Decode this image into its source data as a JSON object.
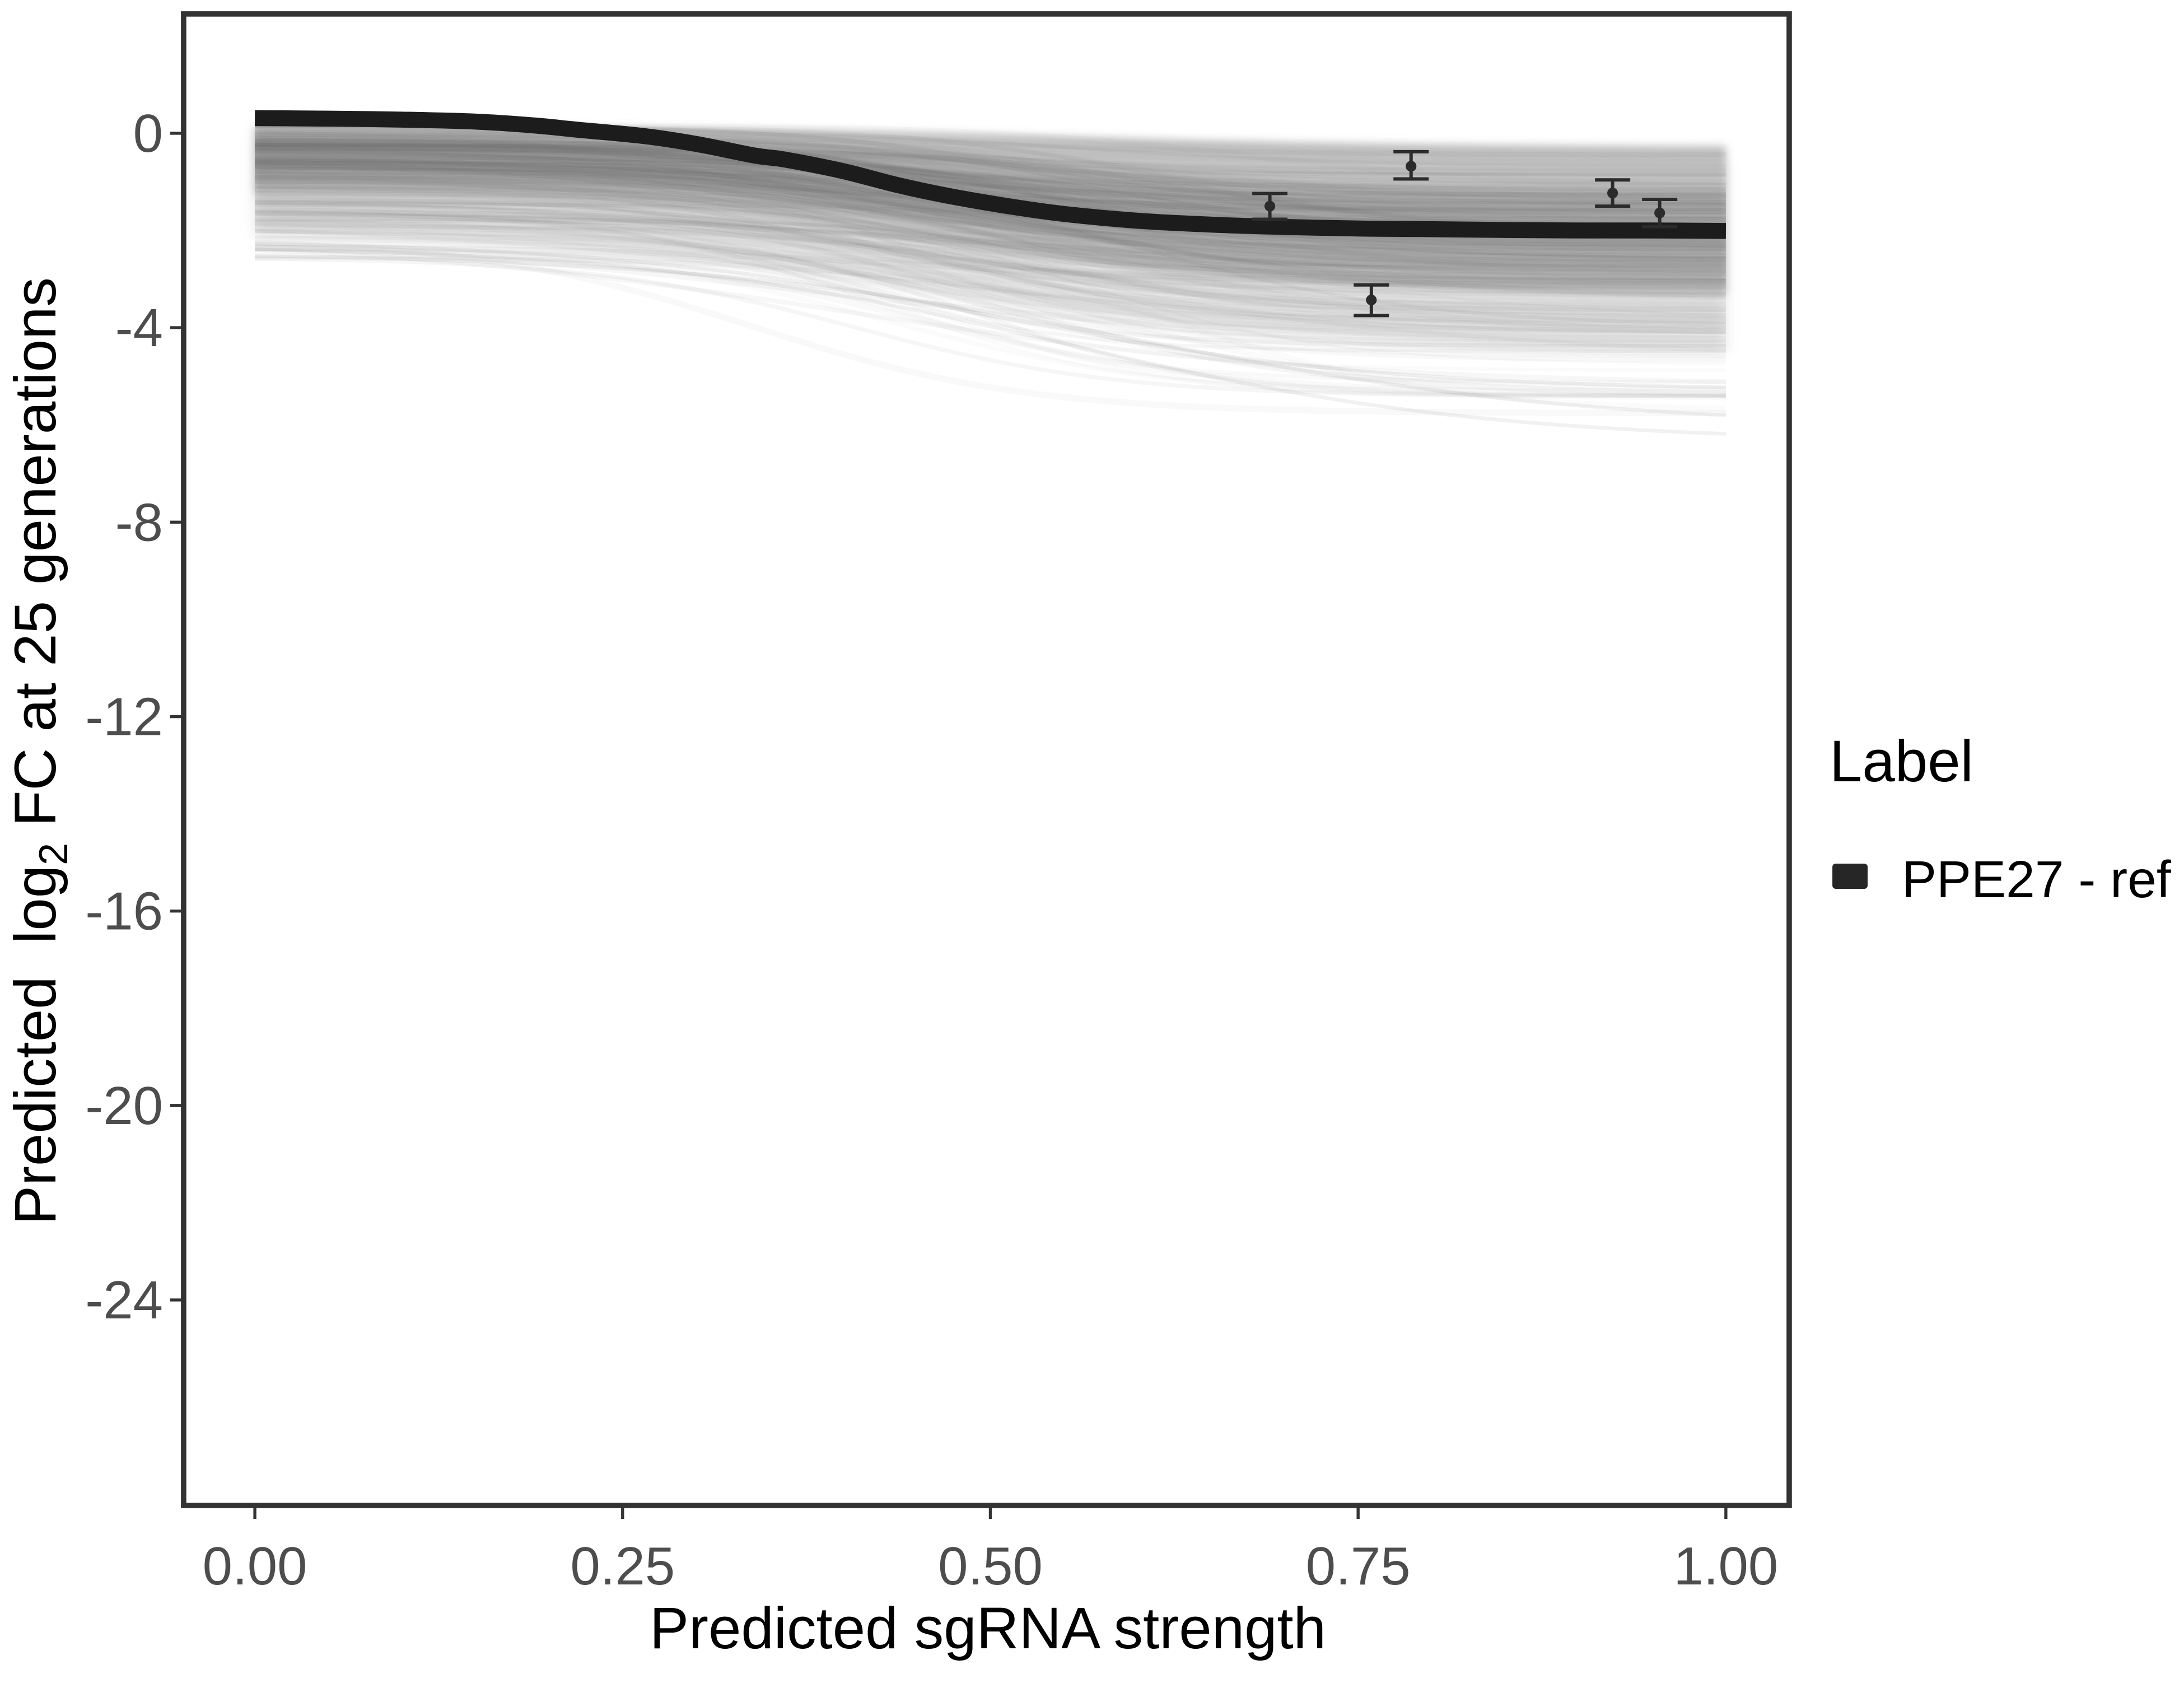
{
  "figure": {
    "background": "#ffffff",
    "panel_border_color": "#333333",
    "tick_mark_color": "#333333",
    "tick_label_color": "#4d4d4d"
  },
  "chart_data": {
    "type": "line",
    "title": "",
    "xlabel": "Predicted sgRNA strength",
    "ylabel": "Predicted log2 FC at 25 generations",
    "ylabel_parts": {
      "pre": "Predicted  ",
      "log": "log",
      "sub": "2",
      "post": " FC at 25 generations"
    },
    "x_axis": {
      "ticks": [
        0,
        0.25,
        0.5,
        0.75,
        1.0
      ],
      "tick_labels": [
        "0.00",
        "0.25",
        "0.50",
        "0.75",
        "1.00"
      ],
      "data_range": [
        0,
        1
      ],
      "panel_range": [
        -0.048,
        1.043
      ]
    },
    "y_axis": {
      "ticks": [
        0,
        -4,
        -8,
        -12,
        -16,
        -20,
        -24
      ],
      "tick_labels": [
        "0",
        "-4",
        "-8",
        "-12",
        "-16",
        "-20",
        "-24"
      ],
      "panel_range": [
        -28.2,
        2.45
      ],
      "grid": "off"
    },
    "legend": {
      "title": "Label",
      "position": "right",
      "entries": [
        {
          "label": "PPE27 - ref",
          "key_color": "#262626"
        }
      ]
    },
    "ref_line": {
      "name": "PPE27 - ref",
      "color": "#1c1c1c",
      "stroke_width": 9.5,
      "points": [
        [
          0.0,
          0.31
        ],
        [
          0.05,
          0.3
        ],
        [
          0.1,
          0.28
        ],
        [
          0.15,
          0.24
        ],
        [
          0.19,
          0.16
        ],
        [
          0.22,
          0.07
        ],
        [
          0.265,
          -0.06
        ],
        [
          0.3,
          -0.22
        ],
        [
          0.34,
          -0.46
        ],
        [
          0.36,
          -0.54
        ],
        [
          0.4,
          -0.78
        ],
        [
          0.436,
          -1.06
        ],
        [
          0.47,
          -1.28
        ],
        [
          0.512,
          -1.5
        ],
        [
          0.55,
          -1.66
        ],
        [
          0.6,
          -1.8
        ],
        [
          0.65,
          -1.88
        ],
        [
          0.69,
          -1.92
        ],
        [
          0.75,
          -1.96
        ],
        [
          0.79,
          -1.97
        ],
        [
          0.85,
          -1.99
        ],
        [
          0.9,
          -2.0
        ],
        [
          0.95,
          -2.0
        ],
        [
          1.0,
          -2.01
        ]
      ]
    },
    "error_points": [
      {
        "x": 0.69,
        "y": -1.5,
        "ymin": -1.77,
        "ymax": -1.24
      },
      {
        "x": 0.759,
        "y": -3.43,
        "ymin": -3.75,
        "ymax": -3.12
      },
      {
        "x": 0.786,
        "y": -0.68,
        "ymin": -0.94,
        "ymax": -0.38
      },
      {
        "x": 0.923,
        "y": -1.23,
        "ymin": -1.5,
        "ymax": -0.96
      },
      {
        "x": 0.955,
        "y": -1.64,
        "ymin": -1.92,
        "ymax": -1.36
      }
    ],
    "point_style": {
      "color": "#2b2b2b",
      "radius": 3.2,
      "cap_half_width": 10.5,
      "stroke_width": 2
    },
    "ensemble": {
      "description": "posterior sample sigmoid curves, translucent gray",
      "seed": 42,
      "count": 380,
      "color": "#757575",
      "x0_mean": 0.48,
      "x0_sd": 0.075,
      "k_mean": 10.5,
      "k_sd": 2.2,
      "groups": [
        {
          "frac": 0.55,
          "s_mean": -0.3,
          "s_sd": 0.28,
          "s_min": -1.0,
          "s_max": 0.15,
          "d_mean": 1.55,
          "d_sd": 0.5,
          "d_min": 0.6,
          "d_max": 2.6
        },
        {
          "frac": 0.3,
          "s_mean": -0.95,
          "s_sd": 0.4,
          "s_min": -1.8,
          "s_max": -0.2,
          "d_mean": 1.9,
          "d_sd": 0.7,
          "d_min": 0.6,
          "d_max": 3.2
        },
        {
          "frac": 0.15,
          "s_mean": -1.7,
          "s_sd": 0.45,
          "s_min": -2.55,
          "s_max": -0.9,
          "d_mean": 2.2,
          "d_sd": 0.9,
          "d_min": 0.8,
          "d_max": 3.6
        }
      ],
      "outliers": [
        {
          "s": -2.3,
          "e": -6.35,
          "x0": 0.55,
          "k": 7.0
        },
        {
          "s": -2.45,
          "e": -6.05,
          "x0": 0.6,
          "k": 6.5
        },
        {
          "s": -2.2,
          "e": -5.3,
          "x0": 0.5,
          "k": 7.5
        }
      ],
      "bands": [
        {
          "top": {
            "s": 0.14,
            "e": -0.28,
            "x0": 0.55,
            "k": 8
          },
          "bottom": {
            "s": -1.22,
            "e": -3.35,
            "x0": 0.5,
            "k": 8
          },
          "fill": "#ababab",
          "opacity": 0.8,
          "blur": "blur-small"
        },
        {
          "top": {
            "s": 0.06,
            "e": -0.55,
            "x0": 0.5,
            "k": 8
          },
          "bottom": {
            "s": -2.02,
            "e": -4.55,
            "x0": 0.47,
            "k": 7
          },
          "fill": "#cccccc",
          "opacity": 0.5,
          "blur": "blur-big"
        }
      ]
    }
  }
}
